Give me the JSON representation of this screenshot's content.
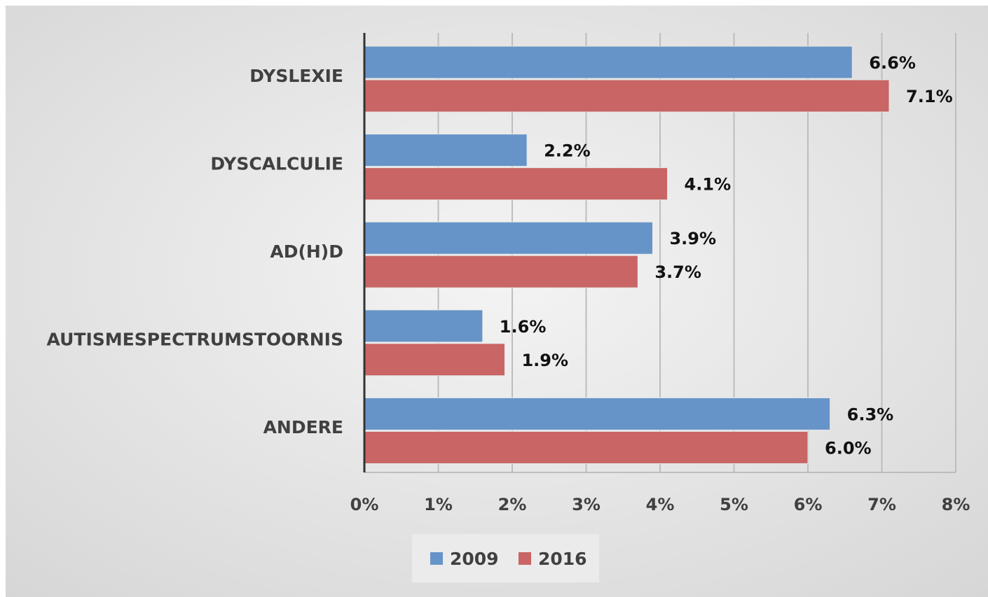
{
  "chart_data": {
    "type": "bar",
    "orientation": "horizontal",
    "categories": [
      "DYSLEXIE",
      "DYSCALCULIE",
      "AD(H)D",
      "AUTISMESPECTRUMSTOORNIS",
      "ANDERE"
    ],
    "series": [
      {
        "name": "2009",
        "color": "#6794c8",
        "values": [
          6.6,
          2.2,
          3.9,
          1.6,
          6.3
        ],
        "value_labels": [
          "6.6%",
          "2.2%",
          "3.9%",
          "1.6%",
          "6.3%"
        ]
      },
      {
        "name": "2016",
        "color": "#c96565",
        "values": [
          7.1,
          4.1,
          3.7,
          1.9,
          6.0
        ],
        "value_labels": [
          "7.1%",
          "4.1%",
          "3.7%",
          "1.9%",
          "6.0%"
        ]
      }
    ],
    "xlim": [
      0,
      8
    ],
    "xticks": [
      {
        "value": 0,
        "label": "0%"
      },
      {
        "value": 1,
        "label": "1%"
      },
      {
        "value": 2,
        "label": "2%"
      },
      {
        "value": 3,
        "label": "3%"
      },
      {
        "value": 4,
        "label": "4%"
      },
      {
        "value": 5,
        "label": "5%"
      },
      {
        "value": 6,
        "label": "6%"
      },
      {
        "value": 7,
        "label": "7%"
      },
      {
        "value": 8,
        "label": "8%"
      }
    ],
    "grid": true,
    "legend": "bottom"
  }
}
